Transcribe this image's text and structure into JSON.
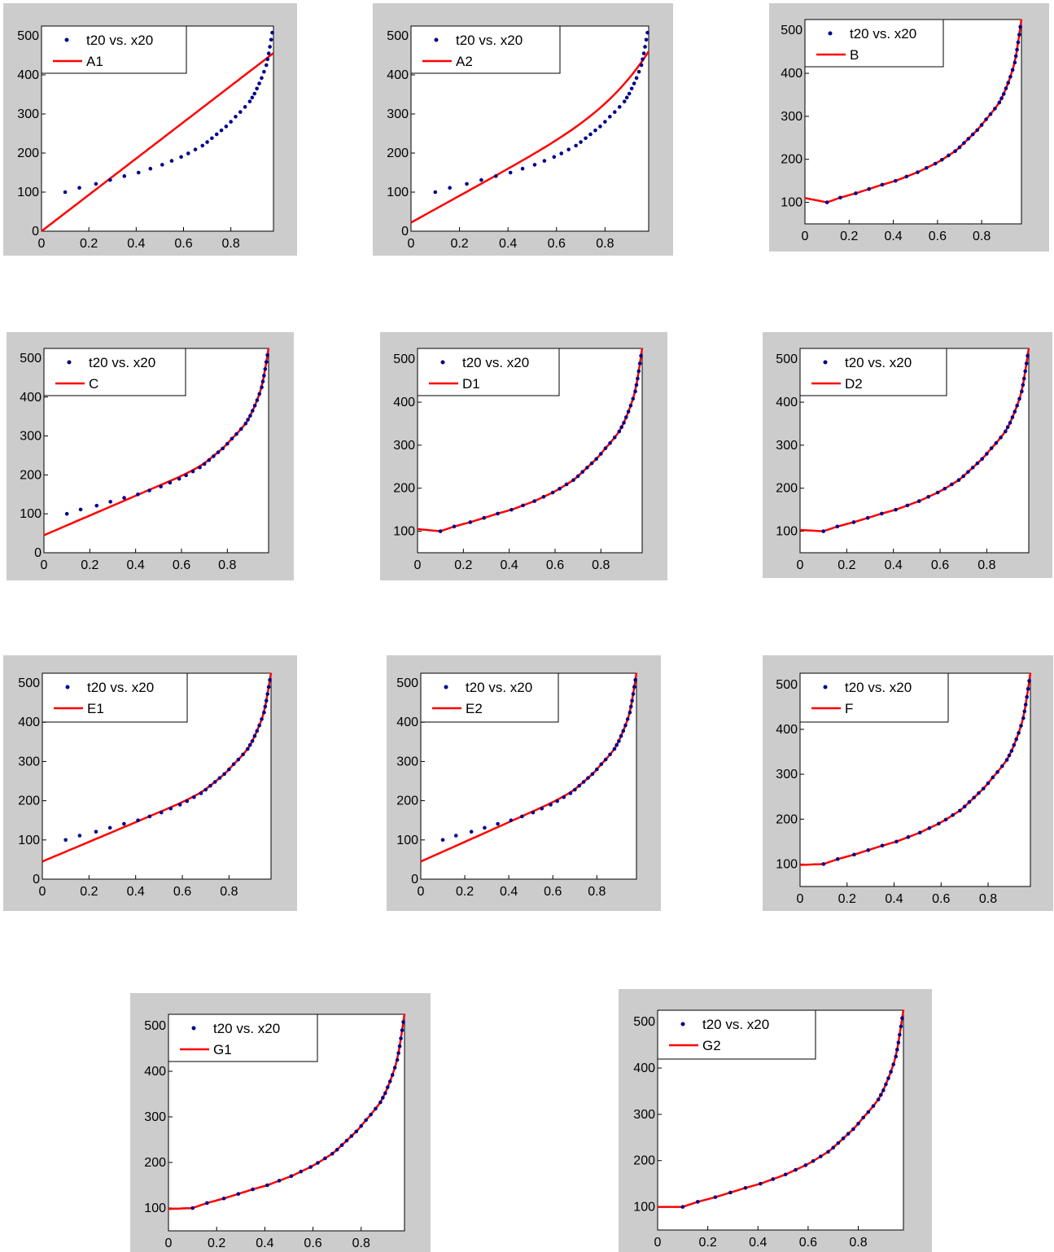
{
  "colors": {
    "points": "#00008b",
    "fit": "#ff0000",
    "panel_bg": "#cccccc",
    "axes_bg": "#ffffff"
  },
  "chart_data": [
    {
      "type": "scatter",
      "name": "A1",
      "x_ticks": [
        "0",
        "0.2",
        "0.4",
        "0.6",
        "0.8"
      ],
      "y_ticks": [
        "0",
        "100",
        "200",
        "300",
        "400",
        "500"
      ],
      "xlim": [
        0,
        0.98
      ],
      "ylim": [
        0,
        525
      ],
      "legend": [
        "t20 vs. x20",
        "A1"
      ],
      "fit": {
        "type": "line",
        "intercept": 0,
        "slope": 465
      }
    },
    {
      "type": "scatter",
      "name": "A2",
      "x_ticks": [
        "0",
        "0.2",
        "0.4",
        "0.6",
        "0.8"
      ],
      "y_ticks": [
        "0",
        "100",
        "200",
        "300",
        "400",
        "500"
      ],
      "xlim": [
        0,
        0.98
      ],
      "ylim": [
        0,
        525
      ],
      "legend": [
        "t20 vs. x20",
        "A2"
      ],
      "fit": {
        "type": "curve",
        "y0": 22,
        "y1": 480
      }
    },
    {
      "type": "scatter",
      "name": "B",
      "x_ticks": [
        "0",
        "0.2",
        "0.4",
        "0.6",
        "0.8"
      ],
      "y_ticks": [
        "100",
        "200",
        "300",
        "400",
        "500"
      ],
      "xlim": [
        0,
        0.98
      ],
      "ylim": [
        50,
        525
      ],
      "legend": [
        "t20 vs. x20",
        "B"
      ],
      "fit": {
        "type": "exact",
        "y0": 110
      }
    },
    {
      "type": "scatter",
      "name": "C",
      "x_ticks": [
        "0",
        "0.2",
        "0.4",
        "0.6",
        "0.8"
      ],
      "y_ticks": [
        "0",
        "100",
        "200",
        "300",
        "400",
        "500"
      ],
      "xlim": [
        0,
        0.98
      ],
      "ylim": [
        0,
        525
      ],
      "legend": [
        "t20 vs. x20",
        "C"
      ],
      "fit": {
        "type": "blend",
        "y0": 45,
        "ymax": 505
      }
    },
    {
      "type": "scatter",
      "name": "D1",
      "x_ticks": [
        "0",
        "0.2",
        "0.4",
        "0.6",
        "0.8"
      ],
      "y_ticks": [
        "100",
        "200",
        "300",
        "400",
        "500"
      ],
      "xlim": [
        0,
        0.98
      ],
      "ylim": [
        50,
        525
      ],
      "legend": [
        "t20 vs. x20",
        "D1"
      ],
      "fit": {
        "type": "exact",
        "y0": 105
      }
    },
    {
      "type": "scatter",
      "name": "D2",
      "x_ticks": [
        "0",
        "0.2",
        "0.4",
        "0.6",
        "0.8"
      ],
      "y_ticks": [
        "100",
        "200",
        "300",
        "400",
        "500"
      ],
      "xlim": [
        0,
        0.98
      ],
      "ylim": [
        50,
        525
      ],
      "legend": [
        "t20 vs. x20",
        "D2"
      ],
      "fit": {
        "type": "exact",
        "y0": 103
      }
    },
    {
      "type": "scatter",
      "name": "E1",
      "x_ticks": [
        "0",
        "0.2",
        "0.4",
        "0.6",
        "0.8"
      ],
      "y_ticks": [
        "0",
        "100",
        "200",
        "300",
        "400",
        "500"
      ],
      "xlim": [
        0,
        0.98
      ],
      "ylim": [
        0,
        525
      ],
      "legend": [
        "t20 vs. x20",
        "E1"
      ],
      "fit": {
        "type": "blend",
        "y0": 45,
        "ymax": 500
      }
    },
    {
      "type": "scatter",
      "name": "E2",
      "x_ticks": [
        "0",
        "0.2",
        "0.4",
        "0.6",
        "0.8"
      ],
      "y_ticks": [
        "0",
        "100",
        "200",
        "300",
        "400",
        "500"
      ],
      "xlim": [
        0,
        0.98
      ],
      "ylim": [
        0,
        525
      ],
      "legend": [
        "t20 vs. x20",
        "E2"
      ],
      "fit": {
        "type": "blend",
        "y0": 45,
        "ymax": 500
      }
    },
    {
      "type": "scatter",
      "name": "F",
      "x_ticks": [
        "0",
        "0.2",
        "0.4",
        "0.6",
        "0.8"
      ],
      "y_ticks": [
        "100",
        "200",
        "300",
        "400",
        "500"
      ],
      "xlim": [
        0,
        0.98
      ],
      "ylim": [
        50,
        525
      ],
      "legend": [
        "t20 vs. x20",
        "F"
      ],
      "fit": {
        "type": "exact",
        "y0": 98
      }
    },
    {
      "type": "scatter",
      "name": "G1",
      "x_ticks": [
        "0",
        "0.2",
        "0.4",
        "0.6",
        "0.8"
      ],
      "y_ticks": [
        "100",
        "200",
        "300",
        "400",
        "500"
      ],
      "xlim": [
        0,
        0.98
      ],
      "ylim": [
        50,
        525
      ],
      "legend": [
        "t20 vs. x20",
        "G1"
      ],
      "fit": {
        "type": "exact",
        "y0": 98
      }
    },
    {
      "type": "scatter",
      "name": "G2",
      "x_ticks": [
        "0",
        "0.2",
        "0.4",
        "0.6",
        "0.8"
      ],
      "y_ticks": [
        "100",
        "200",
        "300",
        "400",
        "500"
      ],
      "xlim": [
        0,
        0.98
      ],
      "ylim": [
        50,
        525
      ],
      "legend": [
        "t20 vs. x20",
        "G2"
      ],
      "fit": {
        "type": "exact",
        "y0": 100
      }
    }
  ],
  "points": {
    "x": [
      0.1,
      0.16,
      0.23,
      0.29,
      0.35,
      0.41,
      0.46,
      0.51,
      0.55,
      0.59,
      0.62,
      0.65,
      0.68,
      0.7,
      0.72,
      0.74,
      0.76,
      0.78,
      0.8,
      0.82,
      0.84,
      0.86,
      0.88,
      0.89,
      0.9,
      0.91,
      0.92,
      0.93,
      0.94,
      0.95,
      0.955,
      0.96,
      0.965,
      0.97,
      0.975
    ],
    "y": [
      100,
      111,
      121,
      131,
      141,
      150,
      160,
      170,
      180,
      190,
      199,
      209,
      219,
      228,
      238,
      248,
      258,
      268,
      280,
      293,
      305,
      318,
      332,
      342,
      352,
      365,
      378,
      392,
      408,
      425,
      440,
      455,
      472,
      490,
      508
    ]
  }
}
